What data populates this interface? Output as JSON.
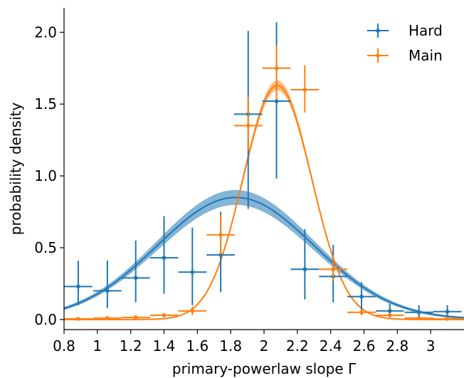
{
  "chart_data": {
    "type": "scatter",
    "xlabel": "primary-powerlaw slope Γ",
    "ylabel": "probability density",
    "xlim": [
      0.8,
      3.2
    ],
    "ylim": [
      -0.07,
      2.17
    ],
    "x_ticks": [
      0.8,
      1.0,
      1.2,
      1.4,
      1.6,
      1.8,
      2.0,
      2.2,
      2.4,
      2.6,
      2.8,
      3.0
    ],
    "x_tick_labels": [
      "0.8",
      "1",
      "1.2",
      "1.4",
      "1.6",
      "1.8",
      "2",
      "2.2",
      "2.4",
      "2.6",
      "2.8",
      "3"
    ],
    "y_ticks": [
      0.0,
      0.5,
      1.0,
      1.5,
      2.0
    ],
    "y_tick_labels": [
      "0.0",
      "0.5",
      "1.0",
      "1.5",
      "2.0"
    ],
    "legend_position": "top-right",
    "series": [
      {
        "name": "Hard",
        "color": "#1f77b4",
        "points": [
          {
            "x": 0.885,
            "y": 0.23,
            "xerr": 0.085,
            "ylo": 0.1,
            "yhi": 0.41
          },
          {
            "x": 1.06,
            "y": 0.2,
            "xerr": 0.085,
            "ylo": 0.08,
            "yhi": 0.41
          },
          {
            "x": 1.23,
            "y": 0.29,
            "xerr": 0.085,
            "ylo": 0.12,
            "yhi": 0.55
          },
          {
            "x": 1.4,
            "y": 0.43,
            "xerr": 0.085,
            "ylo": 0.18,
            "yhi": 0.72
          },
          {
            "x": 1.57,
            "y": 0.33,
            "xerr": 0.085,
            "ylo": 0.1,
            "yhi": 0.64
          },
          {
            "x": 1.74,
            "y": 0.45,
            "xerr": 0.085,
            "ylo": 0.19,
            "yhi": 0.75
          },
          {
            "x": 1.905,
            "y": 1.43,
            "xerr": 0.085,
            "ylo": 0.77,
            "yhi": 2.01
          },
          {
            "x": 2.075,
            "y": 1.52,
            "xerr": 0.085,
            "ylo": 0.98,
            "yhi": 2.07
          },
          {
            "x": 2.245,
            "y": 0.35,
            "xerr": 0.085,
            "ylo": 0.14,
            "yhi": 0.63
          },
          {
            "x": 2.415,
            "y": 0.3,
            "xerr": 0.085,
            "ylo": 0.12,
            "yhi": 0.52
          },
          {
            "x": 2.585,
            "y": 0.16,
            "xerr": 0.085,
            "ylo": 0.06,
            "yhi": 0.26
          },
          {
            "x": 2.755,
            "y": 0.06,
            "xerr": 0.085,
            "ylo": 0.02,
            "yhi": 0.11
          },
          {
            "x": 2.93,
            "y": 0.05,
            "xerr": 0.085,
            "ylo": 0.02,
            "yhi": 0.1
          },
          {
            "x": 3.1,
            "y": 0.055,
            "xerr": 0.085,
            "ylo": 0.02,
            "yhi": 0.1
          }
        ],
        "model": {
          "mu": 1.83,
          "sigma": 0.47,
          "peak": 0.85,
          "band": 0.045
        }
      },
      {
        "name": "Main",
        "color": "#ff7f0e",
        "points": [
          {
            "x": 0.885,
            "y": 0.005,
            "xerr": 0.085,
            "ylo": 0.0,
            "yhi": 0.01
          },
          {
            "x": 1.06,
            "y": 0.01,
            "xerr": 0.085,
            "ylo": 0.005,
            "yhi": 0.015
          },
          {
            "x": 1.23,
            "y": 0.015,
            "xerr": 0.085,
            "ylo": 0.005,
            "yhi": 0.025
          },
          {
            "x": 1.4,
            "y": 0.03,
            "xerr": 0.085,
            "ylo": 0.015,
            "yhi": 0.045
          },
          {
            "x": 1.57,
            "y": 0.06,
            "xerr": 0.085,
            "ylo": 0.03,
            "yhi": 0.09
          },
          {
            "x": 1.74,
            "y": 0.59,
            "xerr": 0.085,
            "ylo": 0.45,
            "yhi": 0.73
          },
          {
            "x": 1.905,
            "y": 1.35,
            "xerr": 0.085,
            "ylo": 1.18,
            "yhi": 1.55
          },
          {
            "x": 2.075,
            "y": 1.75,
            "xerr": 0.085,
            "ylo": 1.53,
            "yhi": 1.91
          },
          {
            "x": 2.245,
            "y": 1.6,
            "xerr": 0.085,
            "ylo": 1.44,
            "yhi": 1.77
          },
          {
            "x": 2.415,
            "y": 0.35,
            "xerr": 0.085,
            "ylo": 0.27,
            "yhi": 0.45
          },
          {
            "x": 2.585,
            "y": 0.05,
            "xerr": 0.085,
            "ylo": 0.03,
            "yhi": 0.07
          },
          {
            "x": 2.755,
            "y": 0.03,
            "xerr": 0.085,
            "ylo": 0.015,
            "yhi": 0.045
          },
          {
            "x": 2.93,
            "y": 0.01,
            "xerr": 0.085,
            "ylo": 0.0,
            "yhi": 0.02
          },
          {
            "x": 3.1,
            "y": 0.005,
            "xerr": 0.085,
            "ylo": 0.0,
            "yhi": 0.01
          }
        ],
        "model": {
          "mu": 2.08,
          "sigma": 0.205,
          "peak": 1.63,
          "band": 0.03
        }
      }
    ]
  }
}
